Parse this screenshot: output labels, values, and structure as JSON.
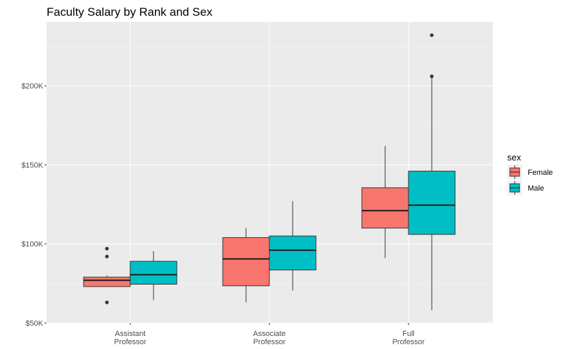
{
  "chart_data": {
    "type": "boxplot",
    "title": "Faculty Salary by Rank and Sex",
    "xlabel": "",
    "ylabel": "",
    "categories": [
      {
        "line1": "Assistant",
        "line2": "Professor"
      },
      {
        "line1": "Associate",
        "line2": "Professor"
      },
      {
        "line1": "Full",
        "line2": "Professor"
      }
    ],
    "y_ticks": [
      {
        "value": 50000,
        "label": "$50K"
      },
      {
        "value": 100000,
        "label": "$100K"
      },
      {
        "value": 150000,
        "label": "$150K"
      },
      {
        "value": 200000,
        "label": "$200K"
      }
    ],
    "ylim": [
      50000,
      238000
    ],
    "grid": true,
    "legend": {
      "title": "sex",
      "position": "right"
    },
    "series": [
      {
        "name": "Female",
        "color": "#F8766D",
        "boxes": [
          {
            "category": 0,
            "lower_whisker": 73000,
            "q1": 73000,
            "median": 77000,
            "q3": 79000,
            "upper_whisker": 80000,
            "outliers": [
              63000,
              92000,
              97000
            ]
          },
          {
            "category": 1,
            "lower_whisker": 63000,
            "q1": 73500,
            "median": 90500,
            "q3": 104000,
            "upper_whisker": 110000,
            "outliers": []
          },
          {
            "category": 2,
            "lower_whisker": 91000,
            "q1": 110000,
            "median": 121000,
            "q3": 135500,
            "upper_whisker": 162000,
            "outliers": []
          }
        ]
      },
      {
        "name": "Male",
        "color": "#00BFC4",
        "boxes": [
          {
            "category": 0,
            "lower_whisker": 64500,
            "q1": 74500,
            "median": 80500,
            "q3": 89000,
            "upper_whisker": 95500,
            "outliers": []
          },
          {
            "category": 1,
            "lower_whisker": 70500,
            "q1": 83500,
            "median": 96000,
            "q3": 105000,
            "upper_whisker": 127000,
            "outliers": []
          },
          {
            "category": 2,
            "lower_whisker": 58000,
            "q1": 106000,
            "median": 124500,
            "q3": 146000,
            "upper_whisker": 205000,
            "outliers": [
              206000,
              232000
            ]
          }
        ]
      }
    ]
  }
}
